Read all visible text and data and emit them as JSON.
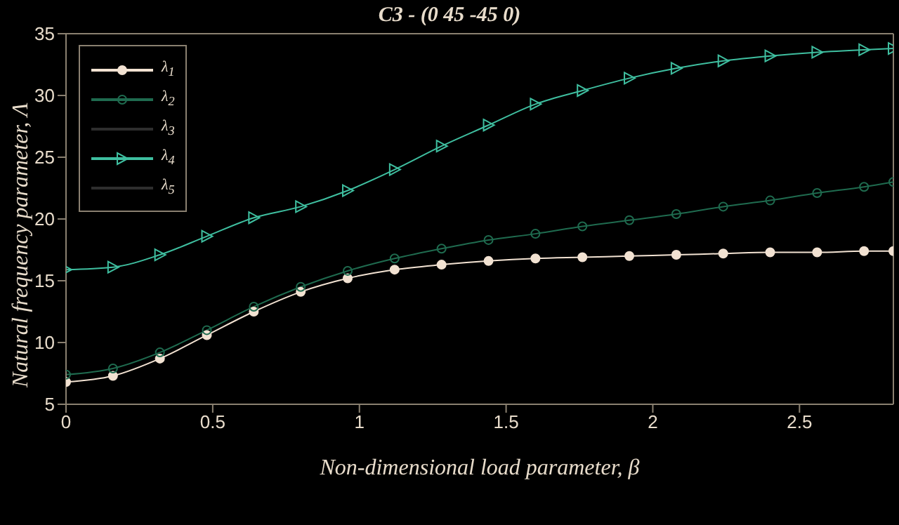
{
  "chart_data": {
    "type": "line",
    "title": "C3 - (0 45 -45 0)",
    "xlabel": "Non-dimensional load parameter, β",
    "ylabel": "Natural frequency parameter, Λ",
    "x": [
      0,
      0.16,
      0.32,
      0.48,
      0.64,
      0.8,
      0.96,
      1.12,
      1.28,
      1.44,
      1.6,
      1.76,
      1.92,
      2.08,
      2.24,
      2.4,
      2.56,
      2.72,
      2.82
    ],
    "series": [
      {
        "name": "λ$_{1}$",
        "color": "#f2e2d2",
        "marker": "circle",
        "values": [
          6.8,
          7.3,
          8.7,
          10.6,
          12.5,
          14.1,
          15.2,
          15.9,
          16.3,
          16.6,
          16.8,
          16.9,
          17.0,
          17.1,
          17.2,
          17.3,
          17.3,
          17.4,
          17.4
        ]
      },
      {
        "name": "λ$_{2}$",
        "color": "#1f6b4f",
        "marker": "circle",
        "values": [
          7.4,
          7.9,
          9.2,
          11.0,
          12.9,
          14.5,
          15.8,
          16.8,
          17.6,
          18.3,
          18.8,
          19.4,
          19.9,
          20.4,
          21.0,
          21.5,
          22.1,
          22.6,
          23.0
        ]
      },
      {
        "name": "λ$_{3}$",
        "color": "#2e2e2e",
        "marker": "none",
        "values": [
          null,
          null,
          null,
          null,
          null,
          null,
          null,
          null,
          null,
          null,
          null,
          null,
          null,
          null,
          null,
          null,
          null,
          null,
          null
        ]
      },
      {
        "name": "λ$_{4}$",
        "color": "#3fbfa0",
        "marker": "triangle",
        "values": [
          15.9,
          16.1,
          17.1,
          18.6,
          20.1,
          21.0,
          22.3,
          24.0,
          25.9,
          27.6,
          29.3,
          30.4,
          31.4,
          32.2,
          32.8,
          33.2,
          33.5,
          33.7,
          33.8
        ]
      },
      {
        "name": "λ$_{5}$",
        "color": "#2e2e2e",
        "marker": "none",
        "values": [
          null,
          null,
          null,
          null,
          null,
          null,
          null,
          null,
          null,
          null,
          null,
          null,
          null,
          null,
          null,
          null,
          null,
          null,
          null
        ]
      }
    ],
    "xlim": [
      0,
      2.82
    ],
    "xticks": [
      0,
      0.5,
      1,
      1.5,
      2,
      2.5
    ],
    "ylim": [
      5,
      35
    ],
    "yticks": [
      5,
      10,
      15,
      20,
      25,
      30,
      35
    ],
    "grid": false,
    "legend": "top left"
  }
}
